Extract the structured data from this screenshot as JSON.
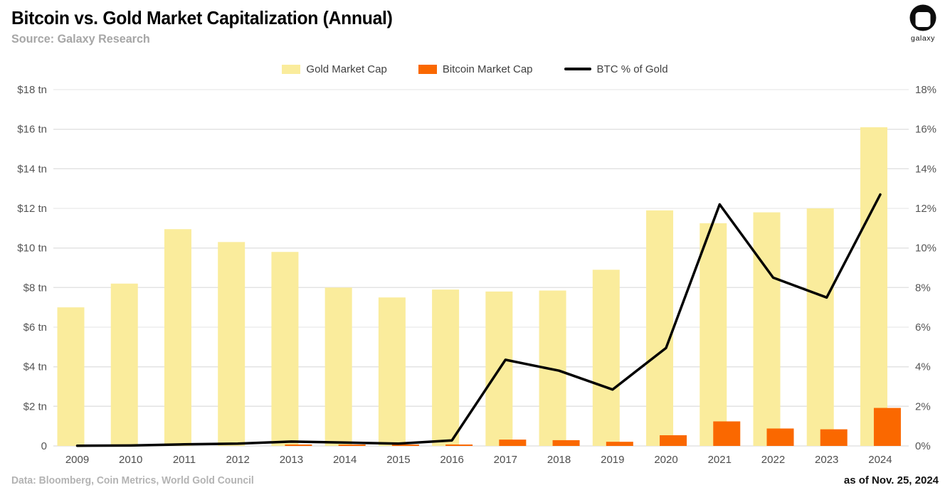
{
  "header": {
    "title": "Bitcoin vs. Gold Market Capitalization (Annual)",
    "source": "Source: Galaxy Research",
    "logo_text": "galaxy"
  },
  "chart_data": {
    "type": "bar",
    "subtype": "overlapped grouped bars with secondary-axis line",
    "title": "Bitcoin vs. Gold Market Capitalization (Annual)",
    "categories": [
      "2009",
      "2010",
      "2011",
      "2012",
      "2013",
      "2014",
      "2015",
      "2016",
      "2017",
      "2018",
      "2019",
      "2020",
      "2021",
      "2022",
      "2023",
      "2024"
    ],
    "series": [
      {
        "name": "Gold Market Cap",
        "type": "bar",
        "axis": "left",
        "unit": "$ tn",
        "color": "#FAEC9C",
        "values": [
          7.0,
          8.2,
          10.95,
          10.3,
          9.8,
          8.0,
          7.5,
          7.9,
          7.8,
          7.85,
          8.9,
          11.9,
          11.25,
          11.8,
          12.0,
          16.1
        ]
      },
      {
        "name": "Bitcoin Market Cap",
        "type": "bar",
        "axis": "left",
        "unit": "$ tn",
        "color": "#FA6800",
        "values": [
          0,
          0,
          0,
          0,
          0.015,
          0.01,
          0.01,
          0.02,
          0.32,
          0.29,
          0.21,
          0.54,
          1.24,
          0.88,
          0.84,
          1.92
        ]
      },
      {
        "name": "BTC % of Gold",
        "type": "line",
        "axis": "right",
        "unit": "%",
        "color": "#000000",
        "values": [
          0.01,
          0.02,
          0.08,
          0.12,
          0.22,
          0.17,
          0.12,
          0.28,
          4.35,
          3.8,
          2.85,
          4.95,
          12.2,
          8.5,
          7.5,
          12.7
        ]
      }
    ],
    "left_axis": {
      "ticks": [
        "$18 tn",
        "$16 tn",
        "$14 tn",
        "$12 tn",
        "$10 tn",
        "$8 tn",
        "$6 tn",
        "$4 tn",
        "$2 tn",
        "0"
      ],
      "min": 0,
      "max": 18
    },
    "right_axis": {
      "ticks": [
        "18%",
        "16%",
        "14%",
        "12%",
        "10%",
        "8%",
        "6%",
        "4%",
        "2%",
        "0%"
      ],
      "min": 0,
      "max": 18
    },
    "grid": true,
    "legend_position": "top-center"
  },
  "footer": {
    "left": "Data: Bloomberg, Coin Metrics, World Gold Council",
    "right": "as of Nov. 25, 2024"
  },
  "colors": {
    "gold": "#FAEC9C",
    "bitcoin_orange": "#FA6800",
    "line_black": "#000000",
    "gridline": "#E3E3E3",
    "baseline": "#D4D4D4",
    "axis_text": "#555555",
    "subtitle_gray": "#A6A6A6",
    "footer_gray": "#B3B3B3"
  }
}
